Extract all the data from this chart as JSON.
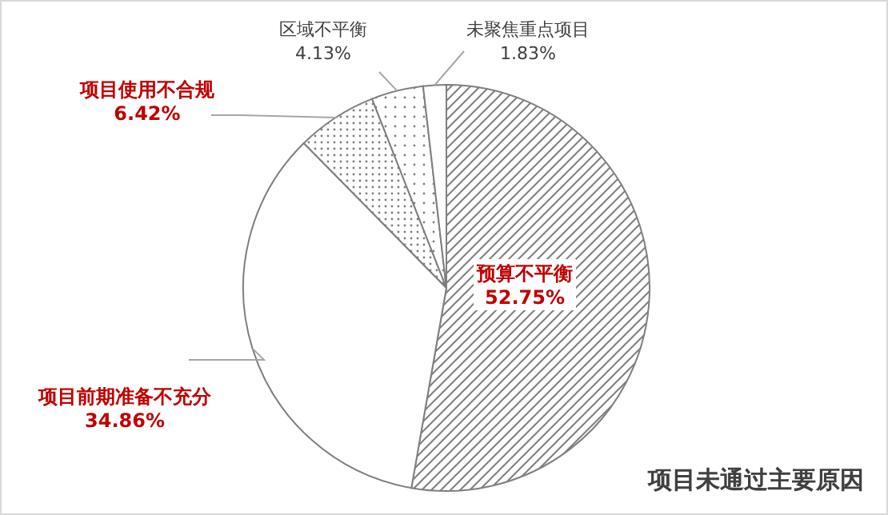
{
  "chart_data": {
    "type": "pie",
    "title": "项目未通过主要原因",
    "categories": [
      "预算不平衡",
      "项目前期准备不充分",
      "项目使用不合规",
      "区域不平衡",
      "未聚焦重点项目"
    ],
    "values": [
      52.75,
      34.86,
      6.42,
      4.13,
      1.83
    ],
    "value_labels": [
      "52.75%",
      "34.86%",
      "6.42%",
      "4.13%",
      "1.83%"
    ],
    "colors": [
      "#7f7f7f",
      "#ffffff",
      "#7f7f7f",
      "#7f7f7f",
      "#ffffff"
    ]
  }
}
